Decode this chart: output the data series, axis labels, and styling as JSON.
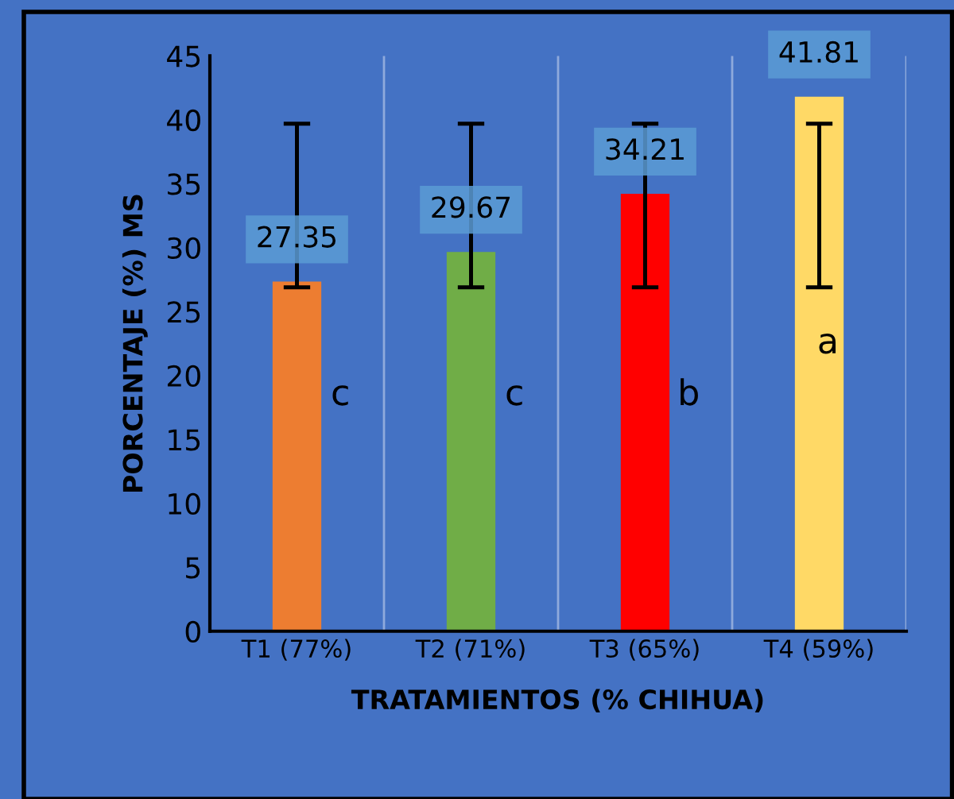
{
  "chart_data": {
    "type": "bar",
    "xlabel": "TRATAMIENTOS (% CHIHUA)",
    "ylabel": "PORCENTAJE (%) MS",
    "categories": [
      "T1 (77%)",
      "T2 (71%)",
      "T3 (65%)",
      "T4 (59%)"
    ],
    "values": [
      27.35,
      29.67,
      34.21,
      41.81
    ],
    "colors": [
      "#ed7d31",
      "#70ad47",
      "#ff0000",
      "#ffd966"
    ],
    "errors": [
      [
        26.9,
        39.7
      ],
      [
        26.9,
        39.7
      ],
      [
        26.9,
        39.7
      ],
      [
        26.9,
        39.7
      ]
    ],
    "data_labels": true,
    "ylim": [
      0,
      45
    ],
    "yticks": [
      0,
      5,
      10,
      15,
      20,
      25,
      30,
      35,
      40,
      45
    ],
    "grid": "x",
    "annotations": [
      "c",
      "c",
      "b",
      "a"
    ]
  }
}
